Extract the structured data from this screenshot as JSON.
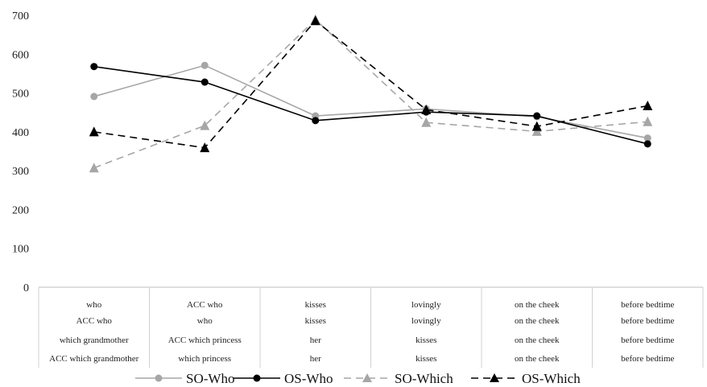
{
  "chart_data": {
    "type": "line",
    "title": "",
    "xlabel": "",
    "ylabel": "",
    "ylim": [
      0,
      700
    ],
    "yticks": [
      "0",
      "100",
      "200",
      "300",
      "400",
      "500",
      "600",
      "700"
    ],
    "category_rows": [
      [
        "who",
        "ACC who",
        "kisses",
        "lovingly",
        "on the cheek",
        "before bedtime"
      ],
      [
        "ACC who",
        "who",
        "kisses",
        "lovingly",
        "on the cheek",
        "before bedtime"
      ],
      [
        "which grandmother",
        "ACC which princess",
        "her",
        "kisses",
        "on the cheek",
        "before bedtime"
      ],
      [
        "ACC which grandmother",
        "which princess",
        "her",
        "kisses",
        "on the cheek",
        "before bedtime"
      ]
    ],
    "series": [
      {
        "name": "SO-Who",
        "values": [
          491,
          571,
          441,
          459,
          439,
          384
        ],
        "color": "#a6a6a6",
        "dash": false,
        "marker": "circle"
      },
      {
        "name": "OS-Who",
        "values": [
          568,
          528,
          429,
          451,
          441,
          369
        ],
        "color": "#000000",
        "dash": false,
        "marker": "circle"
      },
      {
        "name": "SO-Which",
        "values": [
          307,
          416,
          689,
          424,
          401,
          426
        ],
        "color": "#a6a6a6",
        "dash": true,
        "marker": "triangle"
      },
      {
        "name": "OS-Which",
        "values": [
          400,
          359,
          686,
          457,
          414,
          467
        ],
        "color": "#000000",
        "dash": true,
        "marker": "triangle"
      }
    ],
    "grid": false,
    "legend_position": "bottom"
  }
}
